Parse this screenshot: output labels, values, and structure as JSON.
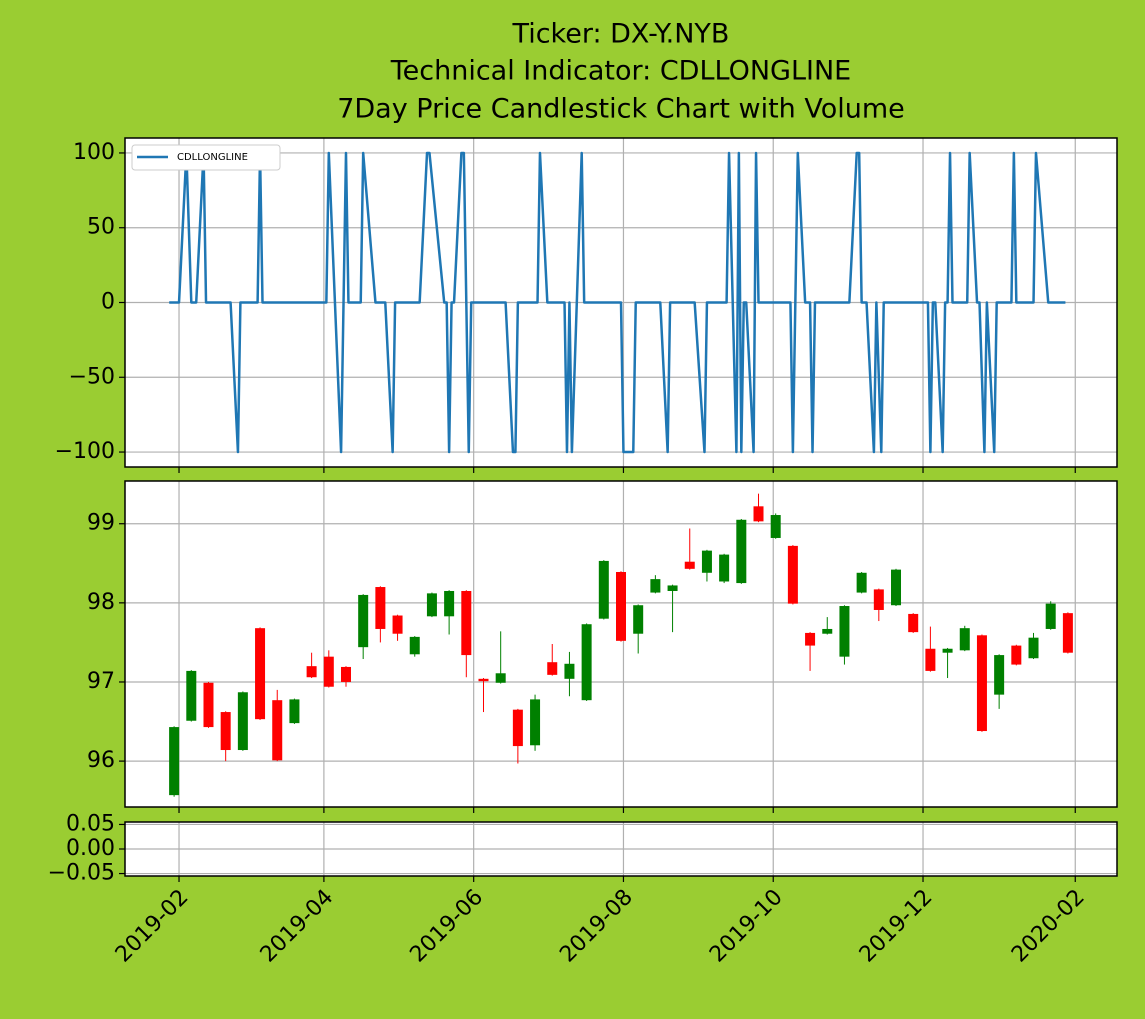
{
  "chart_data": [
    {
      "type": "line",
      "title": [
        "Ticker: DX-Y.NYB",
        "Technical Indicator: CDLLONGLINE",
        "7Day Price Candlestick Chart with Volume"
      ],
      "x": [
        "2019-01-28",
        "2019-02-01",
        "2019-02-04",
        "2019-02-06",
        "2019-02-08",
        "2019-02-11",
        "2019-02-12",
        "2019-02-22",
        "2019-02-25",
        "2019-02-26",
        "2019-03-05",
        "2019-03-06",
        "2019-03-07",
        "2019-04-02",
        "2019-04-03",
        "2019-04-08",
        "2019-04-09",
        "2019-04-10",
        "2019-04-11",
        "2019-04-16",
        "2019-04-17",
        "2019-04-22",
        "2019-04-26",
        "2019-04-29",
        "2019-04-30",
        "2019-05-10",
        "2019-05-13",
        "2019-05-14",
        "2019-05-20",
        "2019-05-21",
        "2019-05-22",
        "2019-05-23",
        "2019-05-24",
        "2019-05-27",
        "2019-05-28",
        "2019-05-30",
        "2019-05-31",
        "2019-06-14",
        "2019-06-17",
        "2019-06-18",
        "2019-06-19",
        "2019-06-27",
        "2019-06-28",
        "2019-07-01",
        "2019-07-08",
        "2019-07-09",
        "2019-07-10",
        "2019-07-11",
        "2019-07-15",
        "2019-07-16",
        "2019-07-31",
        "2019-08-01",
        "2019-08-05",
        "2019-08-06",
        "2019-08-16",
        "2019-08-19",
        "2019-08-20",
        "2019-08-30",
        "2019-09-03",
        "2019-09-04",
        "2019-09-12",
        "2019-09-13",
        "2019-09-16",
        "2019-09-17",
        "2019-09-18",
        "2019-09-19",
        "2019-09-20",
        "2019-09-23",
        "2019-09-24",
        "2019-09-25",
        "2019-10-08",
        "2019-10-09",
        "2019-10-10",
        "2019-10-11",
        "2019-10-14",
        "2019-10-16",
        "2019-10-17",
        "2019-10-18",
        "2019-11-01",
        "2019-11-04",
        "2019-11-05",
        "2019-11-06",
        "2019-11-08",
        "2019-11-11",
        "2019-11-12",
        "2019-11-14",
        "2019-11-15",
        "2019-12-03",
        "2019-12-04",
        "2019-12-05",
        "2019-12-06",
        "2019-12-09",
        "2019-12-10",
        "2019-12-11",
        "2019-12-12",
        "2019-12-13",
        "2019-12-19",
        "2019-12-20",
        "2019-12-23",
        "2019-12-24",
        "2019-12-26",
        "2019-12-27",
        "2019-12-30",
        "2019-12-31",
        "2020-01-06",
        "2020-01-07",
        "2020-01-08",
        "2020-01-15",
        "2020-01-16",
        "2020-01-21",
        "2020-01-28"
      ],
      "series": [
        {
          "name": "CDLLONGLINE",
          "color": "#1f77b4",
          "values": [
            0,
            0,
            100,
            0,
            0,
            100,
            0,
            0,
            -100,
            0,
            0,
            100,
            0,
            0,
            100,
            -100,
            0,
            100,
            0,
            0,
            100,
            0,
            0,
            -100,
            0,
            0,
            100,
            100,
            0,
            0,
            -100,
            0,
            0,
            100,
            100,
            -100,
            0,
            0,
            -100,
            -100,
            0,
            0,
            100,
            0,
            0,
            -100,
            0,
            -100,
            100,
            0,
            0,
            -100,
            -100,
            0,
            0,
            -100,
            0,
            0,
            -100,
            0,
            0,
            100,
            -100,
            100,
            -100,
            0,
            0,
            -100,
            100,
            0,
            0,
            -100,
            0,
            100,
            0,
            0,
            -100,
            0,
            0,
            100,
            100,
            0,
            0,
            -100,
            0,
            -100,
            0,
            0,
            -100,
            0,
            0,
            -100,
            0,
            0,
            100,
            0,
            0,
            100,
            0,
            0,
            -100,
            0,
            -100,
            0,
            0,
            100,
            0,
            0,
            100,
            0,
            0
          ]
        }
      ],
      "ylim": [
        -110,
        110
      ],
      "yticks": [
        100,
        50,
        0,
        {
          "value": -50,
          "label": "−50"
        },
        {
          "value": -100,
          "label": "−100"
        }
      ],
      "grid": true,
      "legend": "upper left"
    },
    {
      "type": "candlestick",
      "x": [
        "2019-01-30",
        "2019-02-06",
        "2019-02-13",
        "2019-02-20",
        "2019-02-27",
        "2019-03-06",
        "2019-03-13",
        "2019-03-20",
        "2019-03-27",
        "2019-04-03",
        "2019-04-10",
        "2019-04-17",
        "2019-04-24",
        "2019-05-01",
        "2019-05-08",
        "2019-05-15",
        "2019-05-22",
        "2019-05-29",
        "2019-06-05",
        "2019-06-12",
        "2019-06-19",
        "2019-06-26",
        "2019-07-03",
        "2019-07-10",
        "2019-07-17",
        "2019-07-24",
        "2019-07-31",
        "2019-08-07",
        "2019-08-14",
        "2019-08-21",
        "2019-08-28",
        "2019-09-04",
        "2019-09-11",
        "2019-09-18",
        "2019-09-25",
        "2019-10-02",
        "2019-10-09",
        "2019-10-16",
        "2019-10-23",
        "2019-10-30",
        "2019-11-06",
        "2019-11-13",
        "2019-11-20",
        "2019-11-27",
        "2019-12-04",
        "2019-12-11",
        "2019-12-18",
        "2019-12-25",
        "2020-01-01",
        "2020-01-08",
        "2020-01-15",
        "2020-01-22",
        "2020-01-29"
      ],
      "open": [
        95.57,
        96.51,
        96.99,
        96.62,
        96.14,
        97.68,
        96.77,
        96.48,
        97.2,
        97.32,
        97.19,
        97.44,
        98.2,
        97.84,
        97.35,
        97.83,
        97.83,
        98.15,
        97.04,
        96.99,
        96.65,
        96.2,
        97.25,
        97.04,
        96.77,
        97.8,
        98.39,
        97.61,
        98.13,
        98.15,
        98.52,
        98.38,
        98.27,
        98.25,
        99.22,
        98.82,
        98.72,
        97.62,
        97.61,
        97.32,
        98.13,
        98.17,
        97.97,
        97.86,
        97.42,
        97.37,
        97.4,
        97.59,
        96.84,
        97.46,
        97.3,
        97.67,
        97.87
      ],
      "high": [
        96.44,
        97.15,
        97.0,
        96.63,
        96.88,
        97.69,
        96.9,
        96.79,
        97.37,
        97.4,
        97.2,
        98.11,
        98.21,
        97.85,
        97.58,
        98.13,
        98.16,
        98.16,
        97.05,
        97.64,
        96.66,
        96.84,
        97.48,
        97.38,
        97.74,
        98.54,
        98.4,
        97.98,
        98.35,
        98.23,
        98.94,
        98.67,
        98.62,
        99.06,
        99.38,
        99.13,
        98.73,
        97.63,
        97.82,
        97.97,
        98.39,
        98.18,
        98.43,
        97.87,
        97.7,
        97.43,
        97.71,
        97.6,
        97.35,
        97.47,
        97.62,
        98.02,
        97.88
      ],
      "low": [
        95.55,
        96.5,
        96.42,
        96.0,
        96.13,
        96.52,
        96.0,
        96.47,
        97.05,
        96.93,
        96.94,
        97.29,
        97.5,
        97.52,
        97.32,
        97.82,
        97.6,
        97.06,
        96.62,
        96.98,
        95.97,
        96.13,
        97.08,
        96.82,
        96.76,
        97.79,
        97.51,
        97.36,
        98.12,
        97.63,
        98.42,
        98.27,
        98.25,
        98.24,
        99.02,
        98.81,
        97.98,
        97.14,
        97.6,
        97.22,
        98.12,
        97.77,
        97.96,
        97.62,
        97.13,
        97.05,
        97.39,
        96.37,
        96.66,
        97.21,
        97.29,
        97.66,
        97.36
      ],
      "close": [
        96.43,
        97.14,
        96.43,
        96.14,
        96.87,
        96.53,
        96.01,
        96.78,
        97.06,
        96.94,
        97.0,
        98.1,
        97.67,
        97.61,
        97.57,
        98.12,
        98.15,
        97.34,
        97.01,
        97.11,
        96.19,
        96.78,
        97.09,
        97.23,
        97.73,
        98.53,
        97.52,
        97.97,
        98.3,
        98.22,
        98.43,
        98.66,
        98.61,
        99.05,
        99.03,
        99.11,
        97.99,
        97.46,
        97.67,
        97.96,
        98.38,
        97.91,
        98.42,
        97.63,
        97.14,
        97.42,
        97.68,
        96.38,
        97.34,
        97.22,
        97.56,
        97.99,
        97.37
      ],
      "up_color": "green",
      "down_color": "red",
      "ylim": [
        95.42,
        99.54
      ],
      "yticks": [
        96,
        97,
        98,
        99
      ],
      "grid": true
    },
    {
      "type": "bar",
      "ylim": [
        -0.055,
        0.055
      ],
      "yticks": [
        {
          "value": 0.05,
          "label": "0.05"
        },
        {
          "value": 0,
          "label": "0.00"
        },
        {
          "value": -0.05,
          "label": "−0.05"
        }
      ],
      "xlim": [
        "2019-01-10",
        "2020-02-18"
      ],
      "xticks": [
        {
          "value": "2019-02-01",
          "label": "2019-02"
        },
        {
          "value": "2019-04-01",
          "label": "2019-04"
        },
        {
          "value": "2019-06-01",
          "label": "2019-06"
        },
        {
          "value": "2019-08-01",
          "label": "2019-08"
        },
        {
          "value": "2019-10-01",
          "label": "2019-10"
        },
        {
          "value": "2019-12-01",
          "label": "2019-12"
        },
        {
          "value": "2020-02-01",
          "label": "2020-02"
        }
      ],
      "grid": true
    }
  ]
}
